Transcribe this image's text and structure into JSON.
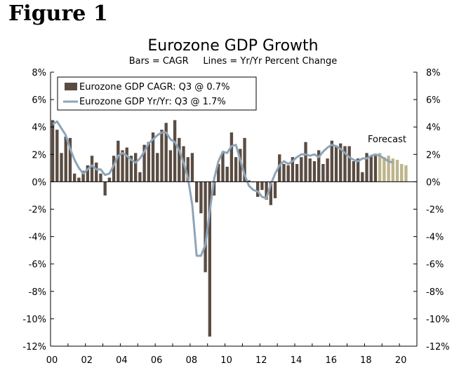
{
  "figure_label": "Figure 1",
  "chart_data": {
    "type": "bar",
    "title": "Eurozone GDP Growth",
    "subtitle": "Bars = CAGR     Lines = Yr/Yr Percent Change",
    "ylim": [
      -12,
      8
    ],
    "y_ticks": [
      8,
      6,
      4,
      2,
      0,
      -2,
      -4,
      -6,
      -8,
      -10,
      -12
    ],
    "y_tick_labels": [
      "8%",
      "6%",
      "4%",
      "2%",
      "0%",
      "-2%",
      "-4%",
      "-6%",
      "-8%",
      "-10%",
      "-12%"
    ],
    "x_range": [
      2000,
      2021
    ],
    "x_ticks": [
      2000,
      2002,
      2004,
      2006,
      2008,
      2010,
      2012,
      2014,
      2016,
      2018,
      2020
    ],
    "x_tick_labels": [
      "00",
      "02",
      "04",
      "06",
      "08",
      "10",
      "12",
      "14",
      "16",
      "18",
      "20"
    ],
    "legend": {
      "position": "top-left",
      "bar_label": "Eurozone GDP CAGR: Q3 @ 0.7%",
      "line_label": "Eurozone GDP Yr/Yr: Q3 @ 1.7%"
    },
    "annotation": "Forecast",
    "colors": {
      "bar_actual": "#5a4c42",
      "bar_forecast": "#bdb48c",
      "line_actual": "#8ea4b8",
      "line_forecast": "#a5541c",
      "axis": "#000000"
    },
    "series": [
      {
        "name": "Eurozone GDP CAGR",
        "kind": "bar",
        "start": 2000.0,
        "step": 0.25,
        "forecast_start_index": 75,
        "values": [
          4.5,
          3.8,
          2.1,
          3.3,
          3.2,
          0.6,
          0.3,
          0.8,
          1.2,
          1.9,
          1.4,
          0.6,
          -1.0,
          0.3,
          1.9,
          3.0,
          2.3,
          2.5,
          1.9,
          2.1,
          0.7,
          2.7,
          2.9,
          3.6,
          2.1,
          3.8,
          4.3,
          2.3,
          4.5,
          3.2,
          2.6,
          1.8,
          2.1,
          -1.5,
          -2.3,
          -6.6,
          -11.3,
          -1.0,
          1.3,
          2.1,
          1.1,
          3.6,
          1.8,
          2.4,
          3.2,
          0.1,
          0.0,
          -1.1,
          -0.6,
          -1.3,
          -1.7,
          -1.2,
          2.0,
          1.3,
          1.2,
          1.8,
          1.3,
          1.8,
          2.9,
          1.7,
          1.5,
          2.3,
          1.3,
          1.7,
          3.0,
          2.6,
          2.8,
          2.6,
          2.6,
          1.5,
          1.7,
          0.7,
          2.1,
          1.9,
          1.9,
          2.1,
          1.8,
          1.9,
          1.7,
          1.6,
          1.3,
          1.2
        ]
      },
      {
        "name": "Eurozone GDP Yr/Yr",
        "kind": "line",
        "start": 2000.0,
        "step": 0.25,
        "forecast_start_index": 78,
        "values": [
          4.2,
          4.4,
          3.9,
          3.4,
          2.4,
          1.6,
          1.0,
          0.6,
          0.9,
          1.2,
          0.9,
          0.9,
          0.5,
          0.6,
          1.2,
          1.9,
          2.1,
          1.9,
          1.6,
          1.4,
          1.7,
          2.2,
          2.8,
          3.1,
          3.4,
          3.6,
          3.6,
          3.1,
          2.9,
          2.3,
          1.4,
          0.3,
          -1.7,
          -5.4,
          -5.4,
          -4.6,
          -2.2,
          0.2,
          1.5,
          2.2,
          2.1,
          2.6,
          2.7,
          1.6,
          0.5,
          -0.3,
          -0.6,
          -0.7,
          -1.1,
          -1.2,
          -0.2,
          0.6,
          1.2,
          1.5,
          1.3,
          1.5,
          1.8,
          2.0,
          2.0,
          1.9,
          2.0,
          1.8,
          2.2,
          2.5,
          2.7,
          2.6,
          2.4,
          2.1,
          1.8,
          1.6,
          1.5,
          1.7,
          1.7,
          1.9,
          2.0,
          1.9,
          1.7,
          1.5,
          1.4
        ]
      }
    ]
  }
}
